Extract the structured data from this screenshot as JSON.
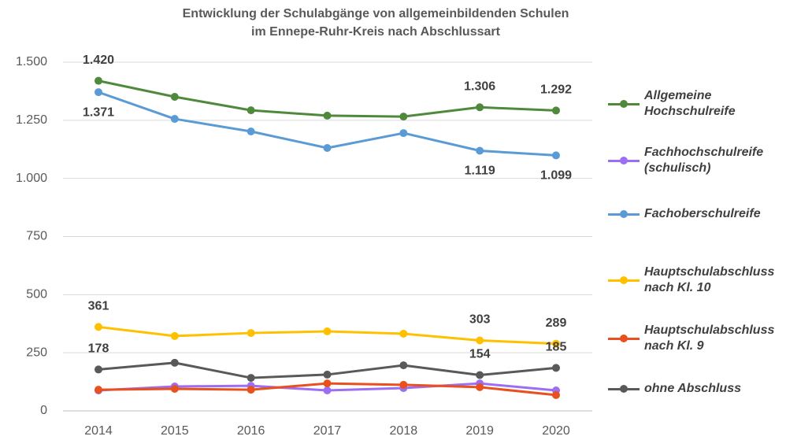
{
  "chart_data": {
    "type": "line",
    "title": [
      "Entwicklung der Schulabgänge von allgemeinbildenden Schulen",
      "im Ennepe-Ruhr-Kreis nach Abschlussart"
    ],
    "categories": [
      "2014",
      "2015",
      "2016",
      "2017",
      "2018",
      "2019",
      "2020"
    ],
    "ylim": [
      0,
      1500
    ],
    "yticks": [
      0,
      250,
      500,
      750,
      {
        "value": 1000,
        "label": "1.000"
      },
      {
        "value": 1250,
        "label": "1.250"
      },
      {
        "value": 1500,
        "label": "1.500"
      }
    ],
    "grid": true,
    "legend": "right",
    "series": [
      {
        "name": "Allgemeine Hochschulreife",
        "color": "#4f8a3c",
        "values": [
          1420,
          1351,
          1293,
          1270,
          1266,
          1306,
          1292
        ],
        "value_labels": [
          "1.420",
          null,
          null,
          null,
          null,
          "1.306",
          "1.292"
        ]
      },
      {
        "name": "Fachhochschulreife (schulisch)",
        "color": "#9b6ef3",
        "values": [
          88,
          105,
          108,
          88,
          98,
          118,
          88
        ]
      },
      {
        "name": "Fachoberschulreife",
        "color": "#5b9bd5",
        "values": [
          1371,
          1256,
          1202,
          1131,
          1195,
          1119,
          1099
        ],
        "value_labels": [
          "1.371",
          null,
          null,
          null,
          null,
          "1.119",
          "1.099"
        ]
      },
      {
        "name": "Hauptschulabschluss nach Kl. 10",
        "color": "#ffc000",
        "values": [
          361,
          322,
          335,
          342,
          332,
          303,
          289
        ],
        "value_labels": [
          "361",
          null,
          null,
          null,
          null,
          "303",
          "289"
        ]
      },
      {
        "name": "Hauptschulabschluss nach Kl. 9",
        "color": "#e8501e",
        "values": [
          91,
          95,
          91,
          118,
          112,
          102,
          68
        ]
      },
      {
        "name": "ohne Abschluss",
        "color": "#595959",
        "values": [
          178,
          207,
          142,
          156,
          196,
          154,
          185
        ],
        "value_labels": [
          "178",
          null,
          null,
          null,
          null,
          "154",
          "185"
        ]
      }
    ]
  }
}
